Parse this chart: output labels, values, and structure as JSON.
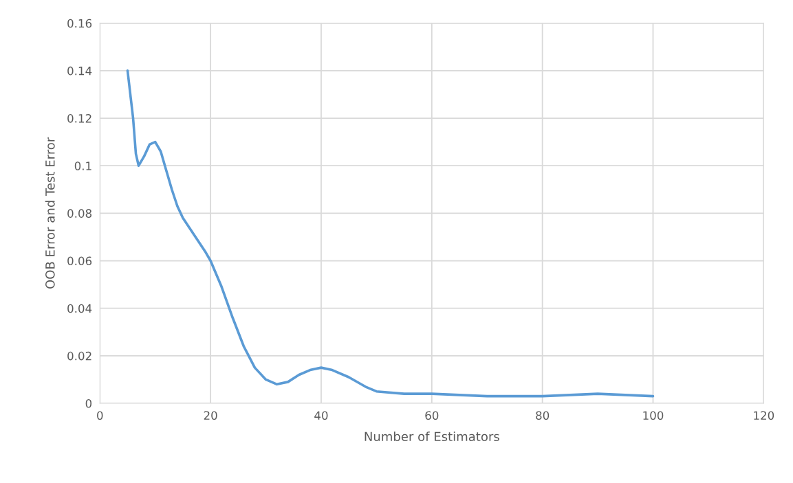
{
  "chart_data": {
    "type": "line",
    "xlabel": "Number of Estimators",
    "ylabel": "OOB Error and Test Error",
    "x": [
      5,
      6,
      6.5,
      7,
      8,
      9,
      10,
      11,
      12,
      13,
      14,
      15,
      17,
      19,
      20,
      22,
      24,
      26,
      28,
      30,
      32,
      34,
      36,
      38,
      40,
      42,
      45,
      48,
      50,
      55,
      60,
      65,
      70,
      75,
      80,
      85,
      90,
      95,
      100
    ],
    "series": [
      {
        "color": "#5b9bd5",
        "values": [
          0.14,
          0.12,
          0.105,
          0.1,
          0.104,
          0.109,
          0.11,
          0.106,
          0.098,
          0.09,
          0.083,
          0.078,
          0.071,
          0.064,
          0.06,
          0.049,
          0.036,
          0.024,
          0.015,
          0.01,
          0.008,
          0.009,
          0.012,
          0.014,
          0.015,
          0.014,
          0.011,
          0.007,
          0.005,
          0.004,
          0.004,
          0.0035,
          0.003,
          0.003,
          0.003,
          0.0035,
          0.004,
          0.0035,
          0.003
        ]
      }
    ],
    "xlim": [
      0,
      120
    ],
    "xticks": [
      0,
      20,
      40,
      60,
      80,
      100,
      120
    ],
    "ylim": [
      0,
      0.16
    ],
    "yticks": [
      0,
      0.02,
      0.04,
      0.06,
      0.08,
      0.1,
      0.12,
      0.14,
      0.16
    ],
    "grid": true,
    "marker": "none",
    "line_style": "solid"
  }
}
